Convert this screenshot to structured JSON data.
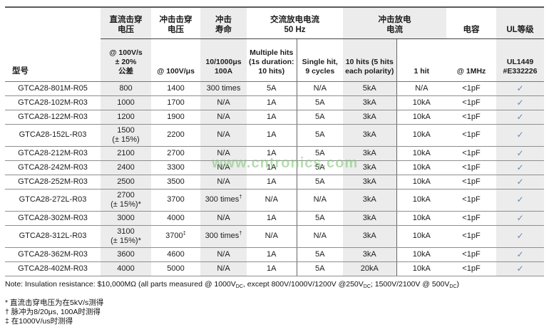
{
  "watermark": {
    "text": "www.cntronics.com",
    "color": "#7fc276"
  },
  "table": {
    "model_header": "型号",
    "groups": [
      {
        "label": "直流击穿\n电压"
      },
      {
        "label": "冲击击穿\n电压"
      },
      {
        "label": "冲击\n寿命"
      },
      {
        "label": "交流放电电流\n50 Hz"
      },
      {
        "label": "冲击放电\n电流"
      },
      {
        "label": "电容"
      },
      {
        "label": "UL等级"
      }
    ],
    "subheaders": [
      "@ 100V/s\n± 20%\n公差",
      "@ 100V/μs",
      "10/1000μs\n100A",
      "Multiple hits\n(1s duration:\n10 hits)",
      "Single hit,\n9 cycles",
      "10 hits (5 hits\neach polarity)",
      "1 hit",
      "@ 1MHz",
      "UL1449\n#E332226"
    ],
    "rows": [
      {
        "model": "GTCA28-801M-R05",
        "cells": [
          "800",
          "1400",
          "300 times",
          "5A",
          "N/A",
          "5kA",
          "N/A",
          "<1pF",
          "✓"
        ]
      },
      {
        "model": "GTCA28-102M-R03",
        "cells": [
          "1000",
          "1700",
          "N/A",
          "1A",
          "5A",
          "3kA",
          "10kA",
          "<1pF",
          "✓"
        ]
      },
      {
        "model": "GTCA28-122M-R03",
        "cells": [
          "1200",
          "1900",
          "N/A",
          "1A",
          "5A",
          "3kA",
          "10kA",
          "<1pF",
          "✓"
        ]
      },
      {
        "model": "GTCA28-152L-R03",
        "cells": [
          "1500\n(± 15%)",
          "2200",
          "N/A",
          "1A",
          "5A",
          "3kA",
          "10kA",
          "<1pF",
          "✓"
        ]
      },
      {
        "model": "GTCA28-212M-R03",
        "cells": [
          "2100",
          "2700",
          "N/A",
          "1A",
          "5A",
          "3kA",
          "10kA",
          "<1pF",
          "✓"
        ]
      },
      {
        "model": "GTCA28-242M-R03",
        "cells": [
          "2400",
          "3300",
          "N/A",
          "1A",
          "5A",
          "3kA",
          "10kA",
          "<1pF",
          "✓"
        ]
      },
      {
        "model": "GTCA28-252M-R03",
        "cells": [
          "2500",
          "3500",
          "N/A",
          "1A",
          "5A",
          "3kA",
          "10kA",
          "<1pF",
          "✓"
        ]
      },
      {
        "model": "GTCA28-272L-R03",
        "cells": [
          "2700\n(± 15%)*",
          "3700",
          "300 times^†",
          "N/A",
          "N/A",
          "3kA",
          "10kA",
          "<1pF",
          "✓"
        ]
      },
      {
        "model": "GTCA28-302M-R03",
        "cells": [
          "3000",
          "4000",
          "N/A",
          "1A",
          "5A",
          "3kA",
          "10kA",
          "<1pF",
          "✓"
        ]
      },
      {
        "model": "GTCA28-312L-R03",
        "cells": [
          "3100\n(± 15%)*",
          "3700^‡",
          "300 times^†",
          "N/A",
          "N/A",
          "3kA",
          "10kA",
          "<1pF",
          "✓"
        ]
      },
      {
        "model": "GTCA28-362M-R03",
        "cells": [
          "3600",
          "4600",
          "N/A",
          "1A",
          "5A",
          "3kA",
          "10kA",
          "<1pF",
          "✓"
        ]
      },
      {
        "model": "GTCA28-402M-R03",
        "cells": [
          "4000",
          "5000",
          "N/A",
          "1A",
          "5A",
          "20kA",
          "10kA",
          "<1pF",
          "✓"
        ]
      }
    ]
  },
  "notes": {
    "main_segments": [
      {
        "text": "Note: Insulation resistance: $10,000MΩ (all parts measured @ 1000V"
      },
      {
        "text": "DC",
        "sub": true
      },
      {
        "text": ", except 800V/1000V/1200V @250V"
      },
      {
        "text": "DC",
        "sub": true
      },
      {
        "text": "; 1500V/2100V @ 500V"
      },
      {
        "text": "DC",
        "sub": true
      },
      {
        "text": ")"
      }
    ],
    "footnotes": [
      {
        "marker": "*",
        "text": "直流击穿电压为在5kV/s测得"
      },
      {
        "marker": "†",
        "text": "脉冲为8/20μs, 100A时测得"
      },
      {
        "marker": "‡",
        "text": "在1000V/us时测得"
      }
    ]
  }
}
